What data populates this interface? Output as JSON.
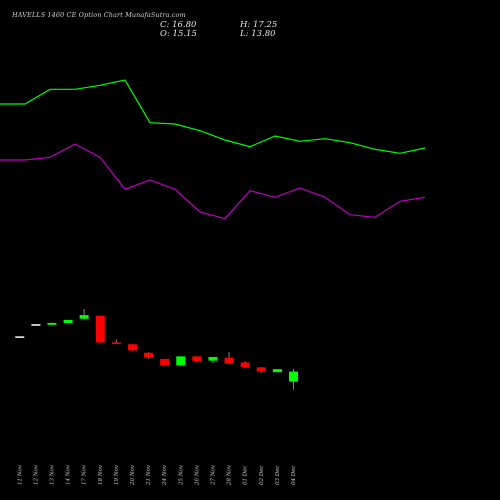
{
  "header": {
    "title": "HAVELLS 1460  CE Option  Chart MunafaSutra.com",
    "close": "C: 16.80",
    "high": "H: 17.25",
    "open": "O: 15.15",
    "low": "L: 13.80"
  },
  "colors": {
    "background": "#000000",
    "up_candle": "#00ff00",
    "down_candle": "#ff0000",
    "neutral_candle": "#ffffff",
    "wick": "#888888",
    "upper_line": "#00ff00",
    "lower_line": "#c000c0",
    "axis_text": "#cccccc"
  },
  "chart_data": {
    "type": "candlestick",
    "title": "HAVELLS 1460  CE Option  Chart MunafaSutra.com",
    "categories": [
      "11 Nov",
      "12 Nov",
      "13 Nov",
      "14 Nov",
      "17 Nov",
      "18 Nov",
      "19 Nov",
      "20 Nov",
      "21 Nov",
      "24 Nov",
      "25 Nov",
      "26 Nov",
      "27 Nov",
      "28 Nov",
      "01 Dec",
      "02 Dec",
      "03 Dec",
      "04 Dec"
    ],
    "ylim": [
      8,
      36
    ],
    "candles": [
      {
        "date": "11 Nov",
        "open": 22.6,
        "high": 22.6,
        "low": 22.6,
        "close": 22.6
      },
      {
        "date": "12 Nov",
        "open": 24.6,
        "high": 24.6,
        "low": 24.6,
        "close": 24.6
      },
      {
        "date": "13 Nov",
        "open": 24.5,
        "high": 24.9,
        "low": 24.5,
        "close": 24.8
      },
      {
        "date": "14 Nov",
        "open": 24.8,
        "high": 25.3,
        "low": 24.8,
        "close": 25.3
      },
      {
        "date": "17 Nov",
        "open": 25.5,
        "high": 27.1,
        "low": 25.5,
        "close": 26.1
      },
      {
        "date": "18 Nov",
        "open": 26.0,
        "high": 26.0,
        "low": 21.5,
        "close": 21.6
      },
      {
        "date": "19 Nov",
        "open": 21.6,
        "high": 22.1,
        "low": 21.3,
        "close": 21.5
      },
      {
        "date": "20 Nov",
        "open": 21.3,
        "high": 21.3,
        "low": 20.2,
        "close": 20.3
      },
      {
        "date": "21 Nov",
        "open": 19.9,
        "high": 20.0,
        "low": 18.9,
        "close": 19.1
      },
      {
        "date": "24 Nov",
        "open": 18.9,
        "high": 18.9,
        "low": 17.8,
        "close": 17.8
      },
      {
        "date": "25 Nov",
        "open": 17.8,
        "high": 19.3,
        "low": 17.8,
        "close": 19.3
      },
      {
        "date": "26 Nov",
        "open": 19.3,
        "high": 19.3,
        "low": 18.3,
        "close": 18.5
      },
      {
        "date": "27 Nov",
        "open": 18.6,
        "high": 19.2,
        "low": 18.2,
        "close": 19.2
      },
      {
        "date": "28 Nov",
        "open": 19.1,
        "high": 20.0,
        "low": 18.1,
        "close": 18.1
      },
      {
        "date": "01 Dec",
        "open": 18.3,
        "high": 18.5,
        "low": 17.4,
        "close": 17.5
      },
      {
        "date": "02 Dec",
        "open": 17.5,
        "high": 17.5,
        "low": 16.6,
        "close": 16.8
      },
      {
        "date": "03 Dec",
        "open": 16.7,
        "high": 17.2,
        "low": 16.7,
        "close": 17.2
      },
      {
        "date": "04 Dec",
        "open": 15.15,
        "high": 17.25,
        "low": 13.8,
        "close": 16.8
      }
    ],
    "series": [
      {
        "values": [
          34.2,
          34.2,
          35.3,
          35.3,
          35.6,
          36.0,
          32.8,
          32.7,
          32.2,
          31.5,
          31.0,
          31.8,
          31.4,
          31.6,
          31.3,
          30.8,
          30.5,
          30.9
        ]
      },
      {
        "values": [
          30.0,
          30.0,
          30.2,
          31.2,
          30.2,
          27.8,
          28.5,
          27.8,
          26.1,
          25.6,
          27.7,
          27.2,
          27.9,
          27.2,
          25.9,
          25.7,
          26.9,
          27.2
        ]
      }
    ]
  }
}
